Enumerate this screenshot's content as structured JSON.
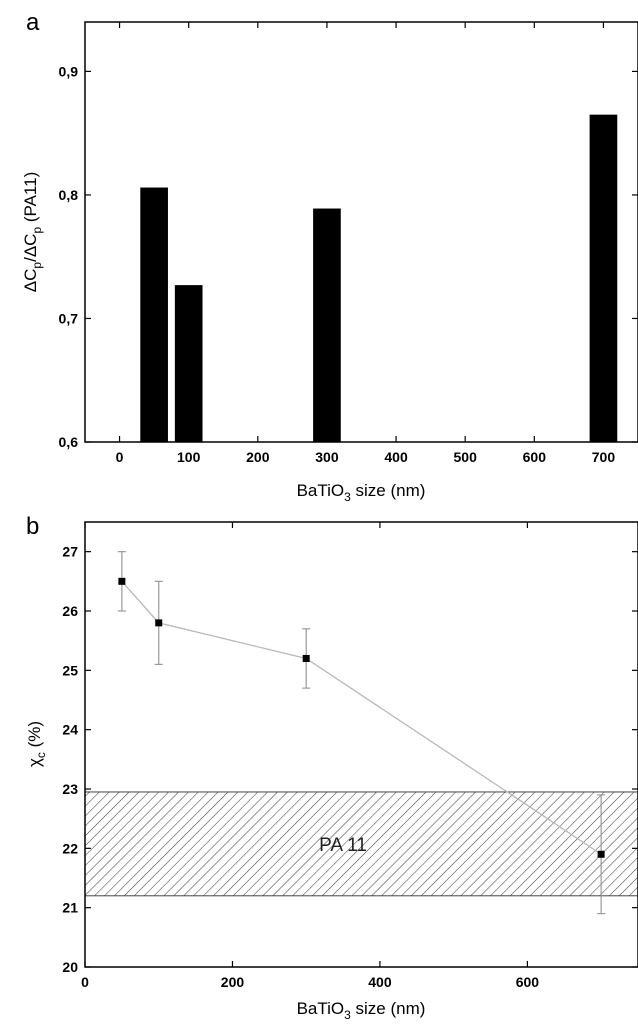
{
  "chart_data": [
    {
      "panel_label": "a",
      "type": "bar",
      "xlabel": "BaTiO",
      "xlabel_sub": "3",
      "xlabel_suffix": " size (nm)",
      "ylabel_parts": [
        "ΔC",
        "p",
        "/ΔC",
        "p",
        " (PA11)"
      ],
      "xlim": [
        -50,
        750
      ],
      "ylim": [
        0.6,
        0.94
      ],
      "xticks": [
        0,
        100,
        200,
        300,
        400,
        500,
        600,
        700
      ],
      "xtick_labels": [
        "0",
        "100",
        "200",
        "300",
        "400",
        "500",
        "600",
        "700"
      ],
      "yticks": [
        0.6,
        0.7,
        0.8,
        0.9
      ],
      "ytick_labels": [
        "0,6",
        "0,7",
        "0,8",
        "0,9"
      ],
      "bar_color": "#000000",
      "bar_width": 40,
      "x": [
        50,
        100,
        300,
        700
      ],
      "values": [
        0.806,
        0.727,
        0.789,
        0.865
      ]
    },
    {
      "panel_label": "b",
      "type": "line",
      "xlabel": "BaTiO",
      "xlabel_sub": "3",
      "xlabel_suffix": " size (nm)",
      "ylabel_main": "χ",
      "ylabel_sub": "c",
      "ylabel_suffix": " (%)",
      "xlim": [
        0,
        750
      ],
      "ylim": [
        20,
        27.5
      ],
      "xticks": [
        0,
        200,
        400,
        600
      ],
      "xtick_labels": [
        "0",
        "200",
        "400",
        "600"
      ],
      "yticks": [
        20,
        21,
        22,
        23,
        24,
        25,
        26,
        27
      ],
      "ytick_labels": [
        "20",
        "21",
        "22",
        "23",
        "24",
        "25",
        "26",
        "27"
      ],
      "line_color": "#b8b8b8",
      "marker_color": "#000000",
      "x": [
        50,
        100,
        300,
        700
      ],
      "y": [
        26.5,
        25.8,
        25.2,
        21.9
      ],
      "error": [
        0.5,
        0.7,
        0.5,
        1.0
      ],
      "band": {
        "ymin": 21.2,
        "ymax": 22.95,
        "label": "PA 11",
        "label_x": 350
      }
    }
  ]
}
